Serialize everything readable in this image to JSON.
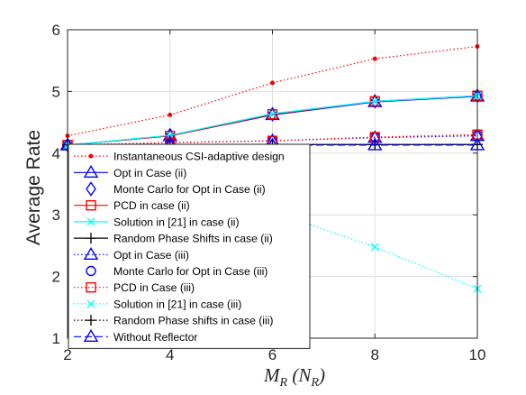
{
  "chart_data": {
    "type": "line",
    "xlabel": "M_R (N_R)",
    "xlabel_parts": {
      "main": "M",
      "sub": "R",
      "paren_main": "N",
      "paren_sub": "R"
    },
    "ylabel": "Average Rate",
    "xlim": [
      2,
      10
    ],
    "ylim": [
      1,
      6
    ],
    "x_ticks": [
      "2",
      "4",
      "6",
      "8",
      "10"
    ],
    "y_ticks": [
      "1",
      "2",
      "3",
      "4",
      "5",
      "6"
    ],
    "grid": true,
    "legend_position": "lower-left",
    "x": [
      2,
      4,
      6,
      8,
      10
    ],
    "series": [
      {
        "name": "Instantaneous CSI-adaptive design",
        "values": [
          4.28,
          4.62,
          5.14,
          5.53,
          5.73
        ],
        "color": "#ff0000",
        "line": "dotted",
        "marker": "dot"
      },
      {
        "name": "Opt in Case (ii)",
        "values": [
          4.13,
          4.28,
          4.62,
          4.83,
          4.92
        ],
        "color": "#0000ff",
        "line": "solid",
        "marker": "triangle"
      },
      {
        "name": "Monte Carlo for Opt in Case (ii)",
        "values": [
          4.13,
          4.29,
          4.63,
          4.84,
          4.93
        ],
        "color": "#0000ff",
        "line": "none",
        "marker": "diamond"
      },
      {
        "name": "PCD in case (ii)",
        "values": [
          4.13,
          4.28,
          4.63,
          4.84,
          4.93
        ],
        "color": "#ff0000",
        "line": "solid",
        "marker": "square"
      },
      {
        "name": "Solution in [21] in case (ii)",
        "values": [
          4.13,
          4.29,
          4.64,
          4.84,
          4.93
        ],
        "color": "#00ffff",
        "line": "solid",
        "marker": "x"
      },
      {
        "name": "Random Phase Shifts in case (ii)",
        "values": [
          4.13,
          4.13,
          4.14,
          4.14,
          4.14
        ],
        "color": "#000000",
        "line": "solid",
        "marker": "plus"
      },
      {
        "name": "Opt in Case (iii)",
        "values": [
          4.13,
          4.17,
          4.2,
          4.25,
          4.28
        ],
        "color": "#0000ff",
        "line": "dotted",
        "marker": "triangle"
      },
      {
        "name": "Monte Carlo for Opt in Case (iii)",
        "values": [
          4.13,
          4.17,
          4.2,
          4.26,
          4.29
        ],
        "color": "#0000ff",
        "line": "none",
        "marker": "circle"
      },
      {
        "name": "PCD in Case (iii)",
        "values": [
          4.13,
          4.17,
          4.2,
          4.26,
          4.3
        ],
        "color": "#ff0000",
        "line": "dotted",
        "marker": "square"
      },
      {
        "name": "Solution in [21] in case (iii)",
        "values": [
          4.13,
          3.7,
          3.05,
          2.48,
          1.8
        ],
        "color": "#00ffff",
        "line": "dotted",
        "marker": "x"
      },
      {
        "name": "Random Phase shifts in case (iii)",
        "values": [
          4.13,
          4.13,
          4.14,
          4.14,
          4.14
        ],
        "color": "#000000",
        "line": "dotted",
        "marker": "plus"
      },
      {
        "name": "Without Reflector",
        "values": [
          4.13,
          4.13,
          4.13,
          4.13,
          4.13
        ],
        "color": "#0000ff",
        "line": "dashed",
        "marker": "triangle"
      }
    ]
  }
}
